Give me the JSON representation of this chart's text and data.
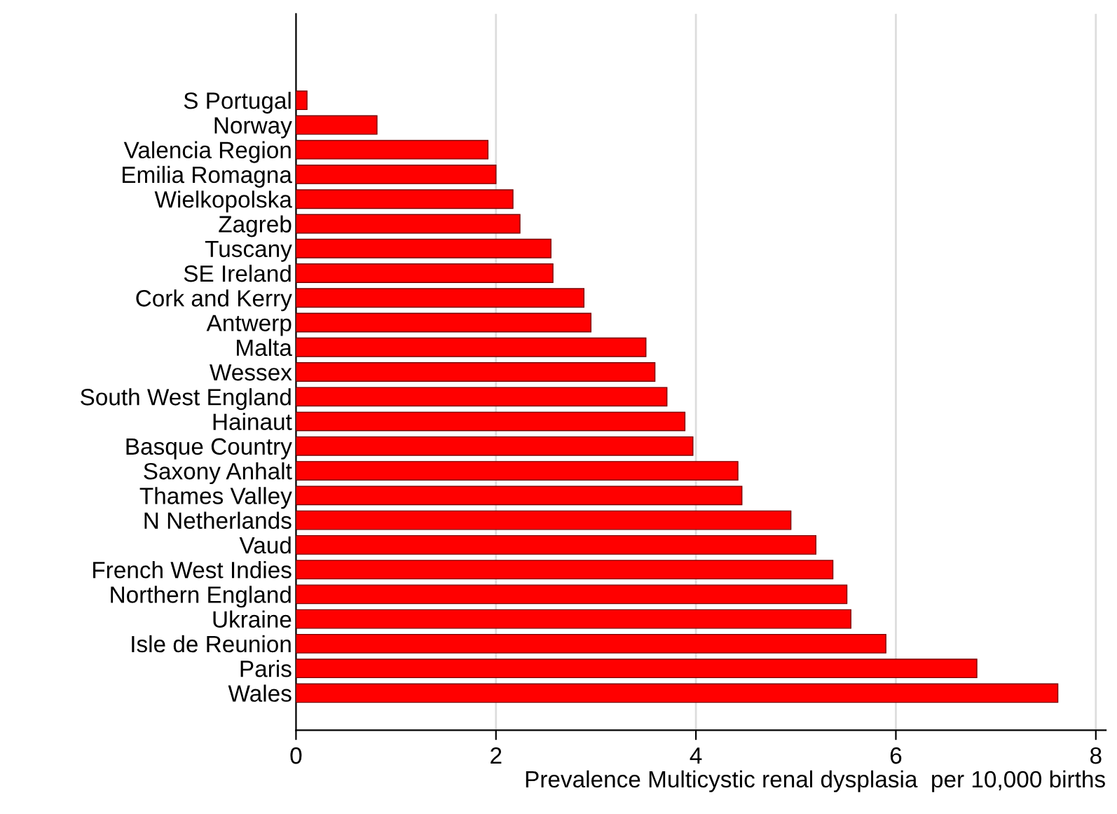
{
  "chart_data": {
    "type": "bar",
    "orientation": "horizontal",
    "xlabel": "Prevalence Multicystic renal dysplasia  per 10,000 births",
    "categories": [
      "S Portugal",
      "Norway",
      "Valencia Region",
      "Emilia Romagna",
      "Wielkopolska",
      "Zagreb",
      "Tuscany",
      "SE Ireland",
      "Cork and Kerry",
      "Antwerp",
      "Malta",
      "Wessex",
      "South West England",
      "Hainaut",
      "Basque Country",
      "Saxony Anhalt",
      "Thames Valley",
      "N Netherlands",
      "Vaud",
      "French West Indies",
      "Northern England",
      "Ukraine",
      "Isle de Reunion",
      "Paris",
      "Wales"
    ],
    "values": [
      0.11,
      0.81,
      1.92,
      2.0,
      2.17,
      2.24,
      2.55,
      2.57,
      2.88,
      2.95,
      3.5,
      3.59,
      3.71,
      3.89,
      3.97,
      4.42,
      4.46,
      4.95,
      5.2,
      5.37,
      5.51,
      5.55,
      5.9,
      6.81,
      7.62
    ],
    "color": "#ff0000",
    "xlim": [
      0,
      8.1
    ],
    "xticks": [
      0,
      2,
      4,
      6,
      8
    ],
    "grid": "x"
  }
}
